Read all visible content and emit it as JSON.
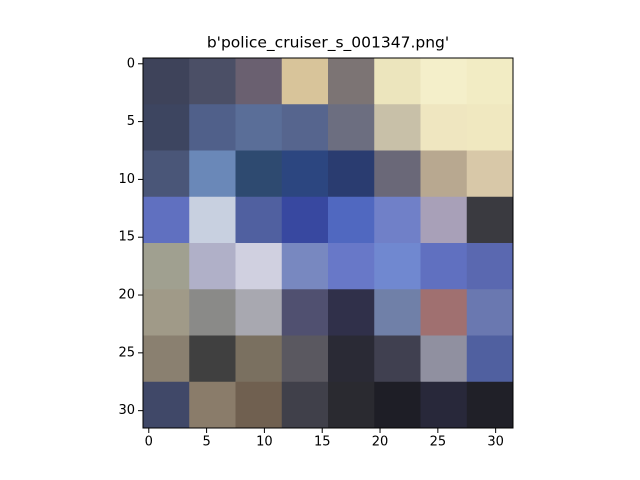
{
  "chart_data": {
    "type": "image",
    "title": "b'police_cruiser_s_001347.png'",
    "xlim": [
      -0.5,
      31.5
    ],
    "ylim": [
      31.5,
      -0.5
    ],
    "xticks": [
      0,
      5,
      10,
      15,
      20,
      25,
      30
    ],
    "yticks": [
      0,
      5,
      10,
      15,
      20,
      25,
      30
    ]
  }
}
